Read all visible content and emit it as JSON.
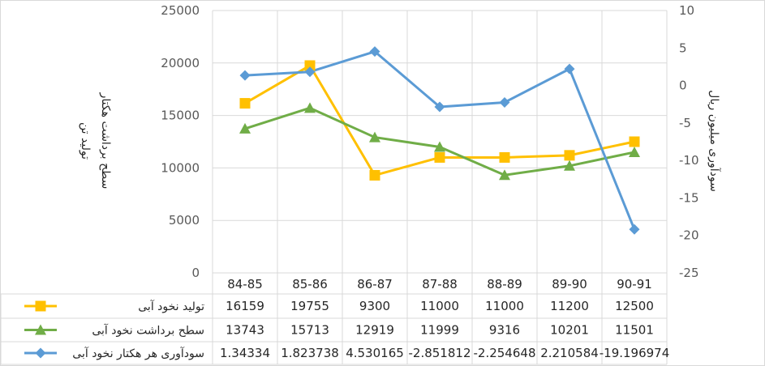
{
  "chart_data": {
    "type": "line",
    "categories": [
      "84-85",
      "85-86",
      "86-87",
      "87-88",
      "88-89",
      "89-90",
      "90-91"
    ],
    "left_axis": {
      "label_line1": "تولید تن",
      "label_line2": "سطح برداشت هکتار",
      "range": [
        0,
        25000
      ],
      "ticks": [
        0,
        5000,
        10000,
        15000,
        20000,
        25000
      ]
    },
    "right_axis": {
      "label": "سودآوری میلیون ریال",
      "range": [
        -25,
        10
      ],
      "ticks": [
        -25,
        -20,
        -15,
        -10,
        -5,
        0,
        5,
        10
      ]
    },
    "series": [
      {
        "name": "تولید  نخود آبی",
        "axis": "left",
        "color": "#ffc000",
        "marker": "square",
        "values": [
          16159,
          19755,
          9300,
          11000,
          11000,
          11200,
          12500
        ],
        "labels": [
          "16159",
          "19755",
          "9300",
          "11000",
          "11000",
          "11200",
          "12500"
        ]
      },
      {
        "name": "سطح برداشت نخود آبی",
        "axis": "left",
        "color": "#70ad47",
        "marker": "triangle",
        "values": [
          13743,
          15713,
          12919,
          11999,
          9316,
          10201,
          11501
        ],
        "labels": [
          "13743",
          "15713",
          "12919",
          "11999",
          "9316",
          "10201",
          "11501"
        ]
      },
      {
        "name": "سودآوری هر هکتار نخود آبی",
        "axis": "right",
        "color": "#5b9bd5",
        "marker": "diamond",
        "values": [
          1.34334,
          1.823738,
          4.530165,
          -2.851812,
          -2.254648,
          2.210584,
          -19.196974
        ],
        "labels": [
          "1.34334",
          "1.823738",
          "4.530165",
          "-2.851812",
          "-2.254648",
          "2.210584",
          "-19.196974"
        ]
      }
    ],
    "grid": true,
    "legend": "data-table"
  }
}
